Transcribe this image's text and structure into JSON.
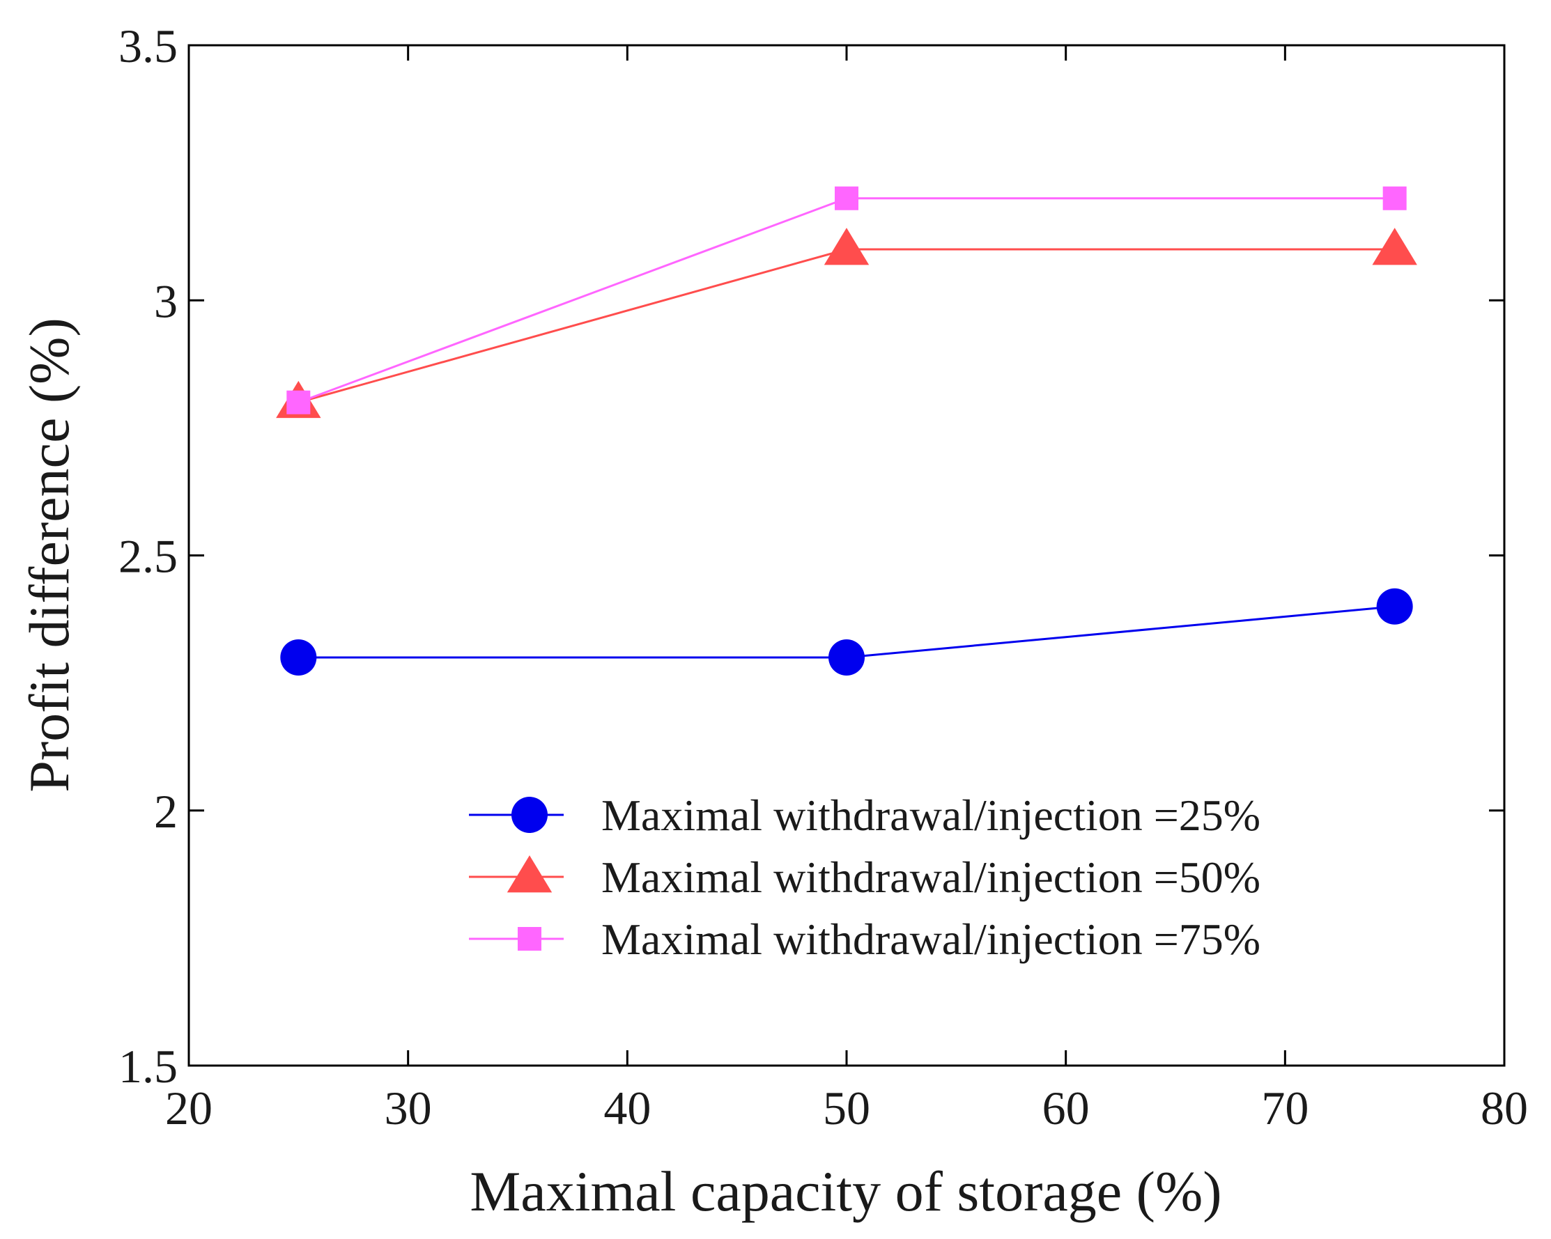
{
  "chart_data": {
    "type": "line",
    "title": "",
    "xlabel": "Maximal capacity of storage (%)",
    "ylabel": "Profit difference (%)",
    "xlim": [
      20,
      80
    ],
    "ylim": [
      1.5,
      3.5
    ],
    "xticks": [
      20,
      30,
      40,
      50,
      60,
      70,
      80
    ],
    "yticks": [
      1.5,
      2,
      2.5,
      3,
      3.5
    ],
    "xtick_labels": [
      "20",
      "30",
      "40",
      "50",
      "60",
      "70",
      "80"
    ],
    "ytick_labels": [
      "1.5",
      "2",
      "2.5",
      "3",
      "3.5"
    ],
    "grid": false,
    "legend_position": "bottom-right",
    "x": [
      25,
      50,
      75
    ],
    "series": [
      {
        "name": "Maximal withdrawal/injection =25%",
        "values": [
          2.3,
          2.3,
          2.4
        ],
        "color": "#0000ee",
        "marker": "circle"
      },
      {
        "name": "Maximal withdrawal/injection =50%",
        "values": [
          2.8,
          3.1,
          3.1
        ],
        "color": "#ff4d4d",
        "marker": "triangle"
      },
      {
        "name": "Maximal withdrawal/injection =75%",
        "values": [
          2.8,
          3.2,
          3.2
        ],
        "color": "#ff66ff",
        "marker": "square"
      }
    ]
  }
}
